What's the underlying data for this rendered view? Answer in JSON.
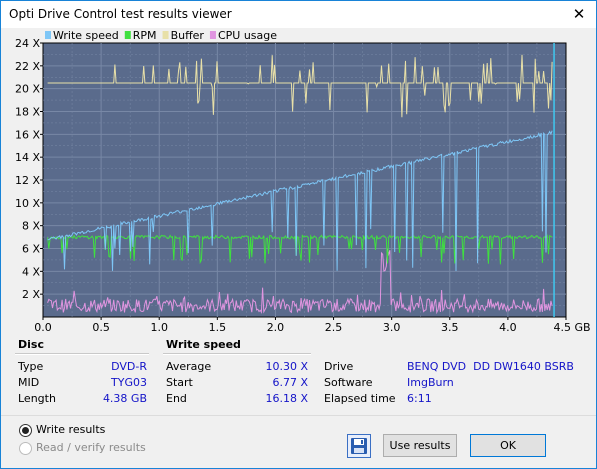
{
  "window": {
    "title": "Opti Drive Control test results viewer",
    "close_glyph": "✕"
  },
  "chart_data": {
    "type": "line",
    "legend": [
      "Write speed",
      "RPM",
      "Buffer",
      "CPU usage"
    ],
    "legend_colors": [
      "#7ec6f6",
      "#3fe03f",
      "#e8e0a8",
      "#e095e0"
    ],
    "background": "#5a6b8c",
    "grid_color": "#7888a6",
    "x_ticks": [
      "0.0",
      "0.5",
      "1.0",
      "1.5",
      "2.0",
      "2.5",
      "3.0",
      "3.5",
      "4.0",
      "4.5 GB"
    ],
    "y_ticks": [
      "2 X",
      "4 X",
      "6 X",
      "8 X",
      "10 X",
      "12 X",
      "14 X",
      "16 X",
      "18 X",
      "20 X",
      "22 X",
      "24 X"
    ],
    "xlim": [
      0,
      4.5
    ],
    "ylim": [
      0,
      24
    ],
    "x_unit": "GB",
    "series": [
      {
        "name": "Write speed",
        "start": 6.77,
        "end": 16.18,
        "end_x": 4.38
      },
      {
        "name": "RPM",
        "level": 7.0
      },
      {
        "name": "Buffer",
        "level": 20.5
      },
      {
        "name": "CPU usage",
        "level": 1.0
      }
    ]
  },
  "disc": {
    "title": "Disc",
    "rows": [
      {
        "label": "Type",
        "value": "DVD-R"
      },
      {
        "label": "MID",
        "value": "TYG03"
      },
      {
        "label": "Length",
        "value": "4.38 GB"
      }
    ]
  },
  "write_speed": {
    "title": "Write speed",
    "rows": [
      {
        "label": "Average",
        "value": "10.30 X"
      },
      {
        "label": "Start",
        "value": "6.77 X"
      },
      {
        "label": "End",
        "value": "16.18 X"
      }
    ]
  },
  "drive_info": {
    "rows": [
      {
        "label": "Drive",
        "value": "BENQ DVD  DD DW1640 BSRB"
      },
      {
        "label": "Software",
        "value": "ImgBurn"
      },
      {
        "label": "Elapsed time",
        "value": "6:11"
      }
    ]
  },
  "options": {
    "write_results": "Write results",
    "read_verify_results": "Read / verify results"
  },
  "buttons": {
    "use_results": "Use results",
    "ok": "OK"
  },
  "icons": {
    "save": "floppy-disk-icon",
    "close": "close-icon"
  }
}
